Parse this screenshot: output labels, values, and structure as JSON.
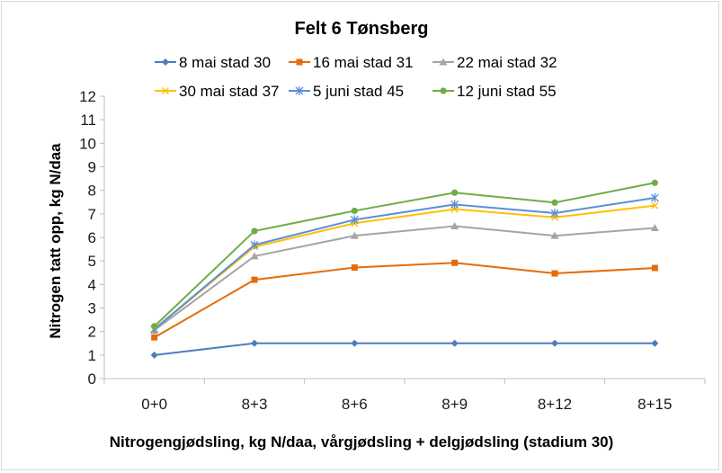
{
  "chart_data": {
    "type": "line",
    "title": "Felt 6 Tønsberg",
    "xlabel": "Nitrogengjødsling, kg N/daa, vårgjødsling + delgjødsling (stadium 30)",
    "ylabel": "Nitrogen tatt opp, kg N/daa",
    "categories": [
      "0+0",
      "8+3",
      "8+6",
      "8+9",
      "8+12",
      "8+15"
    ],
    "ylim": [
      0,
      12
    ],
    "yticks": [
      "0",
      "1",
      "2",
      "3",
      "4",
      "5",
      "6",
      "7",
      "8",
      "9",
      "10",
      "11",
      "12"
    ],
    "grid": false,
    "legend": "top",
    "series": [
      {
        "name": "8 mai stad 30",
        "color": "#4a7ebb",
        "marker": "diamond",
        "values": [
          1.0,
          1.5,
          1.5,
          1.5,
          1.5,
          1.5
        ]
      },
      {
        "name": "16 mai stad 31",
        "color": "#e46c0a",
        "marker": "square",
        "values": [
          1.75,
          4.2,
          4.72,
          4.92,
          4.47,
          4.7
        ]
      },
      {
        "name": "22 mai stad 32",
        "color": "#a5a5a5",
        "marker": "triangle",
        "values": [
          2.05,
          5.2,
          6.07,
          6.48,
          6.07,
          6.4
        ]
      },
      {
        "name": "30 mai stad 37",
        "color": "#ffc000",
        "marker": "x",
        "values": [
          2.1,
          5.6,
          6.6,
          7.2,
          6.85,
          7.35
        ]
      },
      {
        "name": "5 juni stad 45",
        "color": "#5b8fd8",
        "marker": "star",
        "values": [
          2.1,
          5.68,
          6.75,
          7.4,
          7.03,
          7.68
        ]
      },
      {
        "name": "12 juni stad 55",
        "color": "#70ad47",
        "marker": "circle",
        "values": [
          2.22,
          6.27,
          7.13,
          7.9,
          7.48,
          8.32
        ]
      }
    ]
  }
}
